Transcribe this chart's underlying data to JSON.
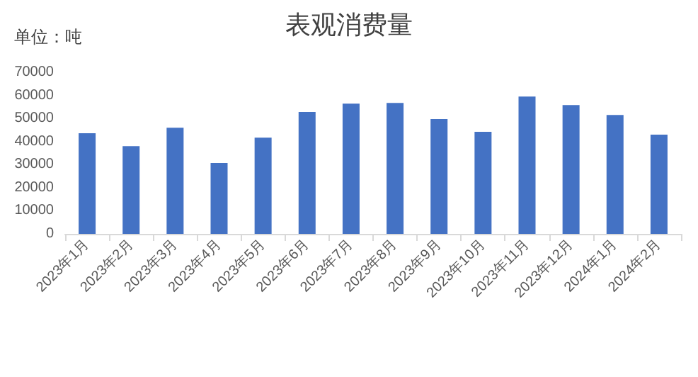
{
  "chart_data": {
    "type": "bar",
    "title": "表观消费量",
    "annotations": [
      "单位：吨"
    ],
    "categories": [
      "2023年1月",
      "2023年2月",
      "2023年3月",
      "2023年4月",
      "2023年5月",
      "2023年6月",
      "2023年7月",
      "2023年8月",
      "2023年9月",
      "2023年10月",
      "2023年11月",
      "2023年12月",
      "2024年1月",
      "2024年2月"
    ],
    "values": [
      43600,
      38000,
      46000,
      30700,
      41700,
      52800,
      56400,
      56700,
      49700,
      44200,
      59500,
      55800,
      51500,
      43000
    ],
    "color": "#4472c4",
    "ylim": [
      0,
      70000
    ],
    "yticks": [
      0,
      10000,
      20000,
      30000,
      40000,
      50000,
      60000,
      70000
    ],
    "grid": false
  }
}
